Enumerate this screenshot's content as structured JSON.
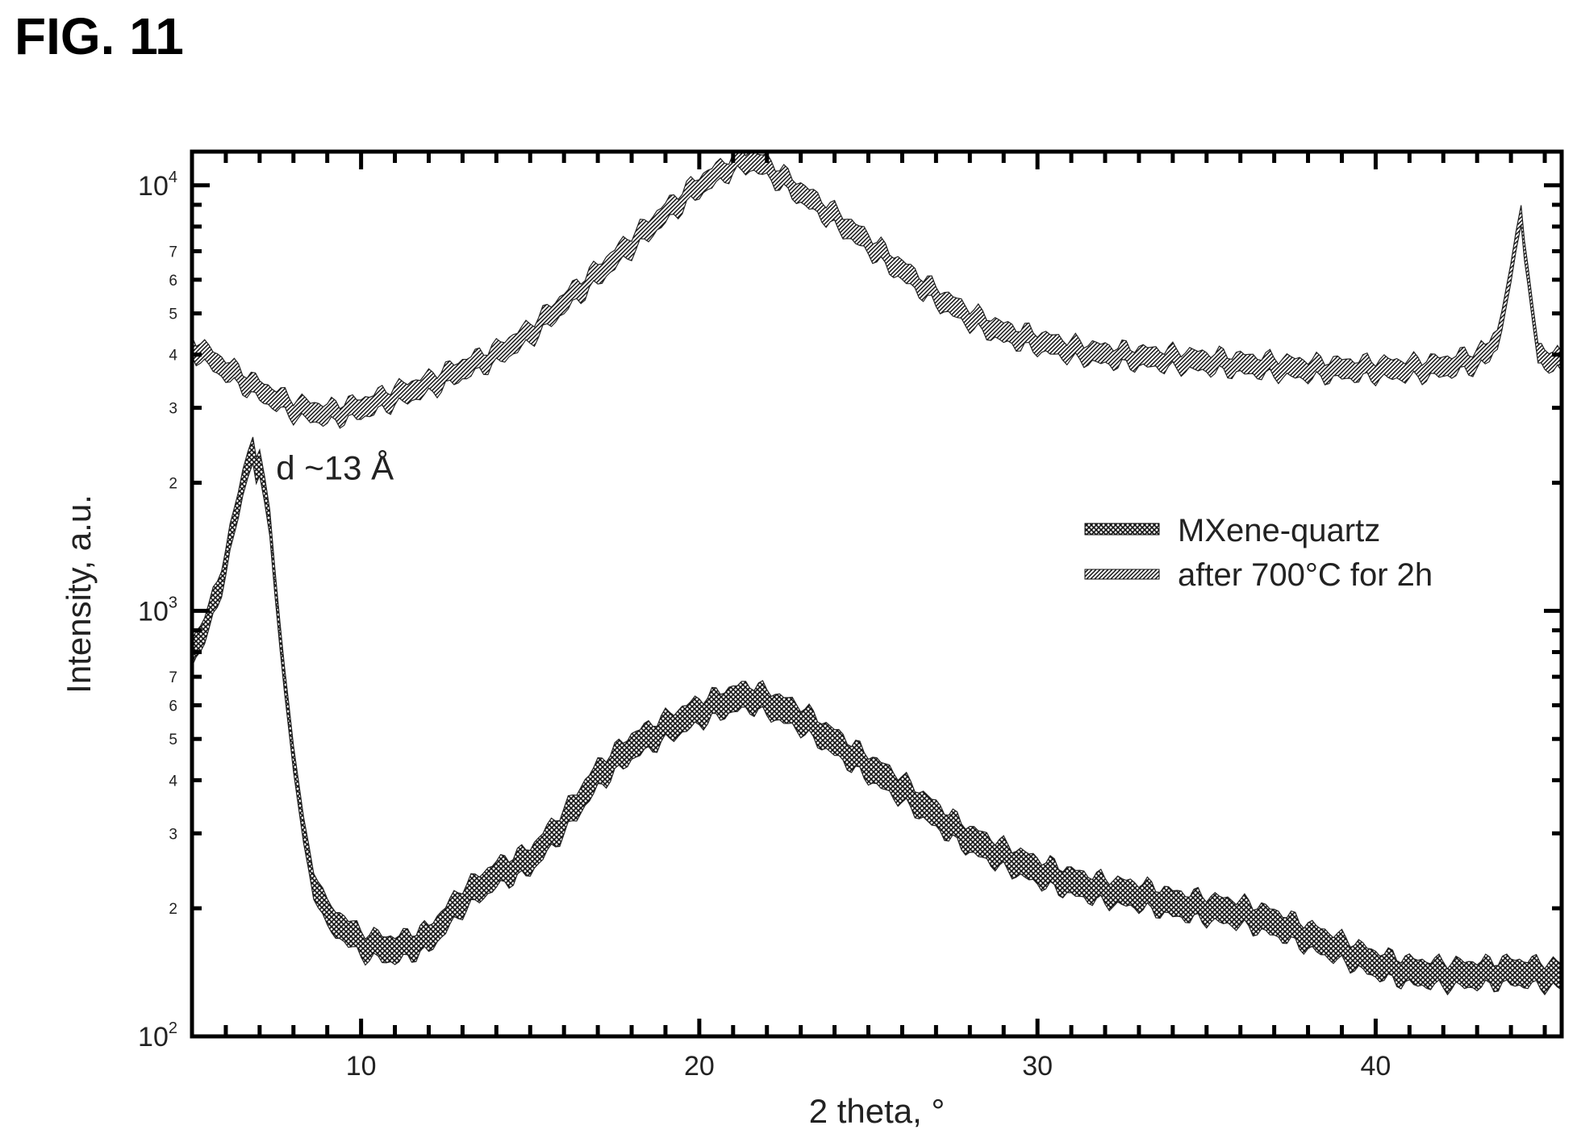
{
  "figure": {
    "label": "FIG. 11"
  },
  "chart_data": {
    "type": "line",
    "title": "",
    "xlabel": "2 theta, °",
    "ylabel": "Intensity, a.u.",
    "xlim": [
      5,
      45.5
    ],
    "ylim": [
      100,
      12000
    ],
    "y_scale": "log",
    "x_ticks": [
      10,
      20,
      30,
      40
    ],
    "y_major_ticks": [
      {
        "value": 100,
        "label": "10",
        "exp": "2"
      },
      {
        "value": 1000,
        "label": "10",
        "exp": "3"
      },
      {
        "value": 10000,
        "label": "10",
        "exp": "4"
      }
    ],
    "y_minor_labels": [
      {
        "value": 200,
        "label": "2"
      },
      {
        "value": 300,
        "label": "3"
      },
      {
        "value": 400,
        "label": "4"
      },
      {
        "value": 500,
        "label": "5"
      },
      {
        "value": 600,
        "label": "6"
      },
      {
        "value": 700,
        "label": "7"
      },
      {
        "value": 2000,
        "label": "2"
      },
      {
        "value": 3000,
        "label": "3"
      },
      {
        "value": 4000,
        "label": "4"
      },
      {
        "value": 5000,
        "label": "5"
      },
      {
        "value": 6000,
        "label": "6"
      },
      {
        "value": 7000,
        "label": "7"
      }
    ],
    "legend": {
      "position": "right"
    },
    "series": [
      {
        "name": "MXene-quartz",
        "style": "cross-hatch",
        "x": [
          5,
          5.5,
          6,
          6.5,
          6.8,
          7.0,
          7.3,
          7.6,
          8.0,
          8.3,
          8.6,
          9.0,
          9.5,
          10,
          11,
          12,
          13,
          14,
          15,
          16,
          17,
          18,
          19,
          20,
          21,
          21.5,
          22,
          23,
          24,
          25,
          26,
          27,
          28,
          29,
          30,
          31,
          32,
          33,
          34,
          35,
          36,
          37,
          38,
          39,
          40,
          41,
          42,
          43,
          44,
          45,
          45.5
        ],
        "y": [
          800,
          950,
          1300,
          2000,
          2300,
          2150,
          1600,
          900,
          450,
          300,
          230,
          190,
          180,
          165,
          160,
          170,
          210,
          240,
          260,
          320,
          410,
          480,
          530,
          580,
          620,
          630,
          610,
          560,
          490,
          430,
          380,
          330,
          290,
          265,
          245,
          230,
          220,
          215,
          205,
          200,
          195,
          185,
          172,
          160,
          148,
          142,
          140,
          140,
          142,
          140,
          138
        ]
      },
      {
        "name": "after 700°C for 2h",
        "style": "diagonal-hatch",
        "x": [
          5,
          6,
          7,
          8,
          9,
          10,
          11,
          12,
          13,
          14,
          15,
          16,
          17,
          18,
          19,
          20,
          21,
          21.5,
          22,
          23,
          24,
          25,
          26,
          27,
          28,
          29,
          30,
          31,
          32,
          33,
          34,
          35,
          36,
          37,
          38,
          39,
          40,
          41,
          42,
          43,
          43.6,
          44.0,
          44.3,
          44.5,
          44.8,
          45.0,
          45.5
        ],
        "y": [
          4200,
          3700,
          3300,
          3000,
          2900,
          3000,
          3200,
          3400,
          3700,
          4000,
          4500,
          5300,
          6200,
          7300,
          8600,
          10000,
          11200,
          11500,
          11000,
          9600,
          8400,
          7300,
          6300,
          5500,
          4900,
          4500,
          4300,
          4100,
          4000,
          3950,
          3900,
          3850,
          3800,
          3750,
          3700,
          3700,
          3700,
          3700,
          3750,
          3900,
          4300,
          6000,
          8500,
          6000,
          4100,
          3900,
          3850
        ]
      }
    ],
    "annotations": [
      {
        "text": "d ~13 Å",
        "x": 7.2,
        "y": 2200
      }
    ]
  }
}
